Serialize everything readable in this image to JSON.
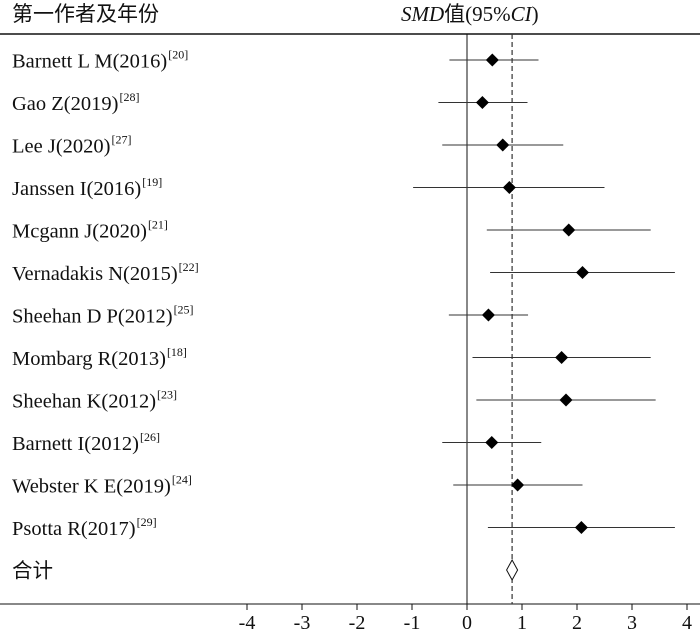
{
  "header": {
    "study_col": "第一作者及年份",
    "smd_em": "SMD",
    "smd_mid": "值(95%",
    "smd_ci": "CI",
    "smd_close": ")"
  },
  "chart_data": {
    "type": "forest",
    "xlim": [
      -4,
      4
    ],
    "x_ticks": [
      -4,
      -3,
      -2,
      -1,
      0,
      1,
      2,
      3,
      4
    ],
    "x_tick_labels": [
      "-4",
      "-3",
      "-2",
      "-1",
      "0",
      "1",
      "2",
      "3",
      "4"
    ],
    "null_line": 0,
    "pooled_reference_line": 0.82,
    "studies": [
      {
        "label": "Barnett L M(2016)",
        "ref": "[20]",
        "smd": 0.46,
        "lower": -0.32,
        "upper": 1.3
      },
      {
        "label": "Gao Z(2019)",
        "ref": "[28]",
        "smd": 0.28,
        "lower": -0.52,
        "upper": 1.1
      },
      {
        "label": "Lee J(2020)",
        "ref": "[27]",
        "smd": 0.65,
        "lower": -0.45,
        "upper": 1.75
      },
      {
        "label": "Janssen I(2016)",
        "ref": "[19]",
        "smd": 0.77,
        "lower": -0.98,
        "upper": 2.5
      },
      {
        "label": "Mcgann J(2020)",
        "ref": "[21]",
        "smd": 1.85,
        "lower": 0.36,
        "upper": 3.34
      },
      {
        "label": "Vernadakis N(2015)",
        "ref": "[22]",
        "smd": 2.1,
        "lower": 0.42,
        "upper": 3.78
      },
      {
        "label": "Sheehan D P(2012)",
        "ref": "[25]",
        "smd": 0.39,
        "lower": -0.33,
        "upper": 1.11
      },
      {
        "label": "Mombarg R(2013)",
        "ref": "[18]",
        "smd": 1.72,
        "lower": 0.1,
        "upper": 3.34
      },
      {
        "label": "Sheehan K(2012)",
        "ref": "[23]",
        "smd": 1.8,
        "lower": 0.17,
        "upper": 3.43
      },
      {
        "label": "Barnett I(2012)",
        "ref": "[26]",
        "smd": 0.45,
        "lower": -0.45,
        "upper": 1.35
      },
      {
        "label": "Webster K E(2019)",
        "ref": "[24]",
        "smd": 0.92,
        "lower": -0.25,
        "upper": 2.1
      },
      {
        "label": "Psotta R(2017)",
        "ref": "[29]",
        "smd": 2.08,
        "lower": 0.38,
        "upper": 3.78
      }
    ],
    "pooled": {
      "label": "合计",
      "smd": 0.82,
      "lower": 0.72,
      "upper": 0.92
    }
  }
}
